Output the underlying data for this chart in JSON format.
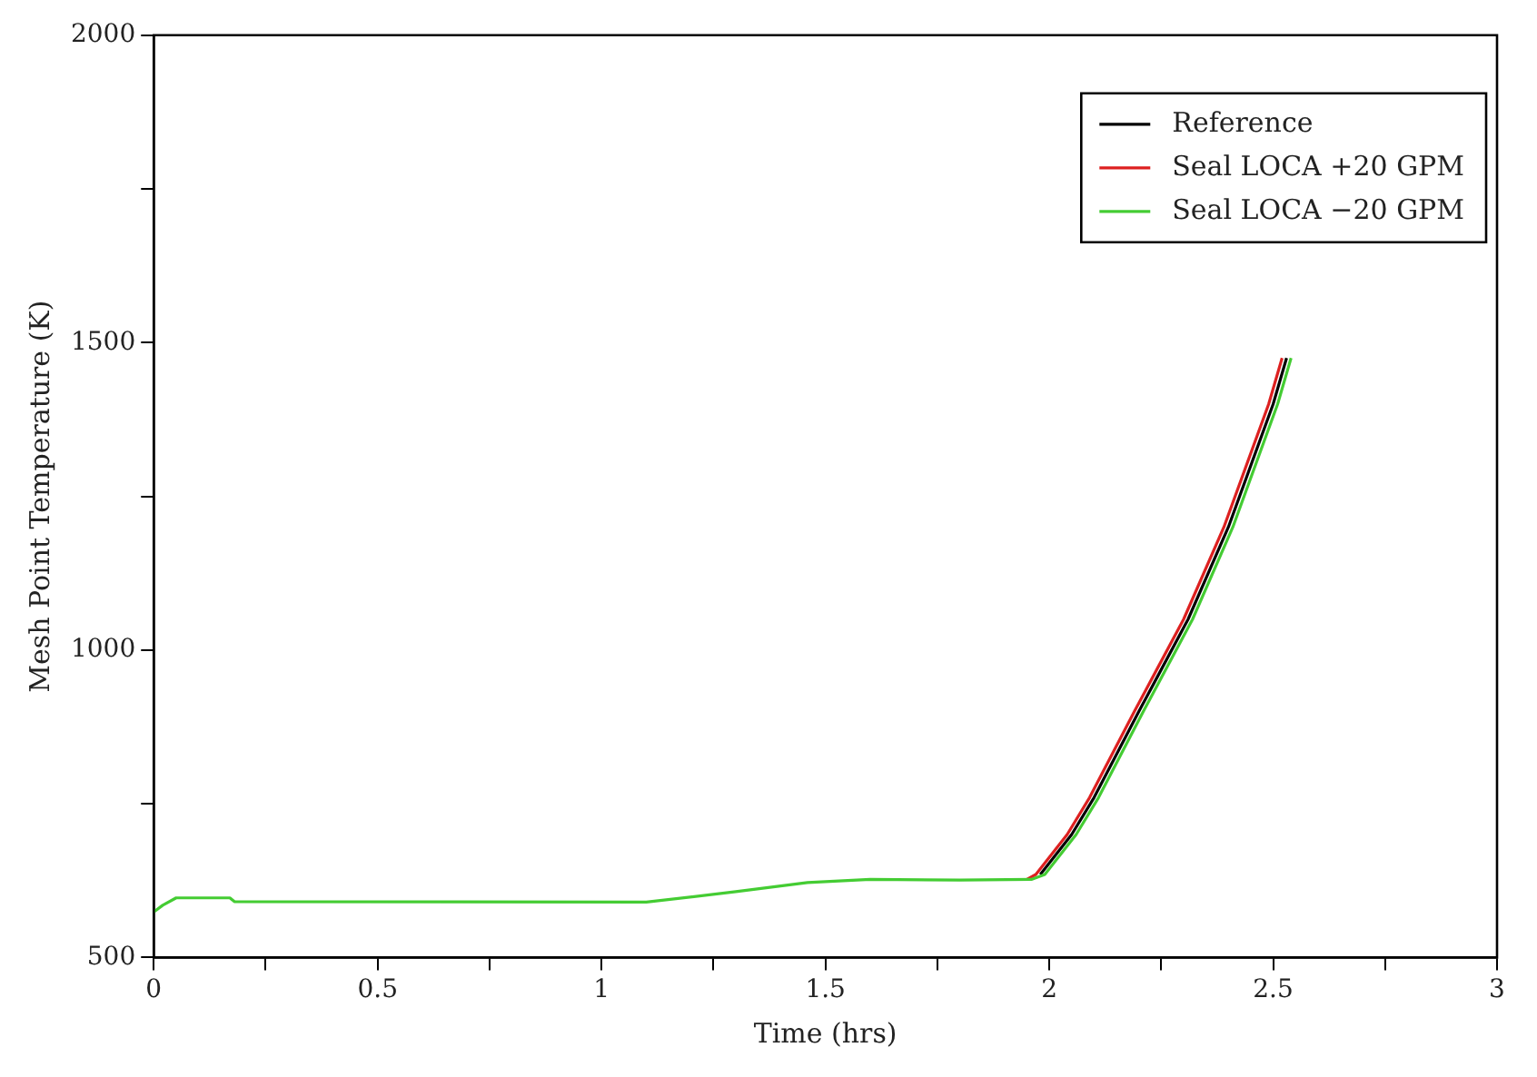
{
  "chart_data": {
    "type": "line",
    "xlabel": "Time (hrs)",
    "ylabel": "Mesh Point Temperature (K)",
    "xlim": [
      0,
      3
    ],
    "xticks": [
      0,
      {
        "value": 0.25,
        "label": null
      },
      0.5,
      {
        "value": 0.75,
        "label": null
      },
      1,
      {
        "value": 1.25,
        "label": null
      },
      1.5,
      {
        "value": 1.75,
        "label": null
      },
      2,
      {
        "value": 2.25,
        "label": null
      },
      2.5,
      {
        "value": 2.75,
        "label": null
      },
      3
    ],
    "ylim": [
      500,
      2000
    ],
    "yticks": [
      500,
      {
        "value": 750,
        "label": null
      },
      1000,
      {
        "value": 1250,
        "label": null
      },
      1500,
      {
        "value": 1750,
        "label": null
      },
      2000
    ],
    "grid": false,
    "legend": "top right",
    "marker": "none",
    "line_style": "solid",
    "series": [
      {
        "name": "Reference",
        "color": "#000000",
        "x": [
          1.98,
          2.05,
          2.1,
          2.2,
          2.31,
          2.4,
          2.5,
          2.53
        ],
        "values": [
          635,
          700,
          760,
          900,
          1050,
          1200,
          1400,
          1475
        ]
      },
      {
        "name": "Seal LOCA +20 GPM",
        "color": "#dd2020",
        "x": [
          1.95,
          1.97,
          2.04,
          2.09,
          2.19,
          2.3,
          2.39,
          2.49,
          2.52
        ],
        "values": [
          627,
          635,
          700,
          760,
          900,
          1050,
          1200,
          1400,
          1475
        ]
      },
      {
        "name": "Seal LOCA −20 GPM",
        "color": "#44cc33",
        "x": [
          0,
          0.02,
          0.05,
          0.17,
          0.18,
          1.1,
          1.3,
          1.46,
          1.6,
          1.8,
          1.96,
          1.99,
          2.06,
          2.11,
          2.21,
          2.32,
          2.41,
          2.51,
          2.54
        ],
        "values": [
          574,
          585,
          597,
          597,
          591,
          590,
          607,
          622,
          627,
          626,
          627,
          635,
          700,
          760,
          900,
          1050,
          1200,
          1400,
          1475
        ]
      }
    ]
  }
}
